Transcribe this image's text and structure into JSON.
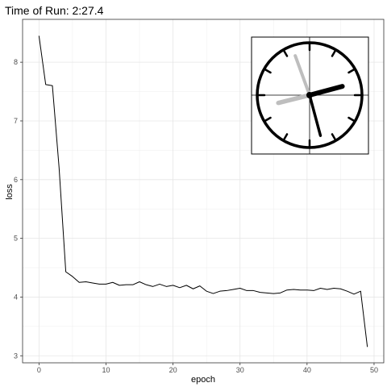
{
  "chart_data": {
    "type": "line",
    "title": "Time of Run: 2:27.4",
    "xlabel": "epoch",
    "ylabel": "loss",
    "xlim": [
      -2.45,
      51.45
    ],
    "ylim": [
      2.88,
      8.73
    ],
    "x_ticks": [
      0,
      10,
      20,
      30,
      40,
      50
    ],
    "y_ticks": [
      3,
      4,
      5,
      6,
      7,
      8
    ],
    "grid": true,
    "legend": "none",
    "series": [
      {
        "x": [
          0,
          1,
          2,
          3,
          4,
          5,
          6,
          7,
          8,
          9,
          10,
          11,
          12,
          13,
          14,
          15,
          16,
          17,
          18,
          19,
          20,
          21,
          22,
          23,
          24,
          25,
          26,
          27,
          28,
          29,
          30,
          31,
          32,
          33,
          34,
          35,
          36,
          37,
          38,
          39,
          40,
          41,
          42,
          43,
          44,
          45,
          46,
          47,
          48,
          49
        ],
        "values": [
          8.45,
          7.62,
          7.6,
          6.2,
          4.43,
          4.35,
          4.25,
          4.26,
          4.24,
          4.22,
          4.22,
          4.25,
          4.2,
          4.21,
          4.21,
          4.26,
          4.21,
          4.18,
          4.22,
          4.18,
          4.2,
          4.16,
          4.2,
          4.14,
          4.19,
          4.1,
          4.06,
          4.1,
          4.11,
          4.13,
          4.15,
          4.11,
          4.11,
          4.08,
          4.07,
          4.06,
          4.07,
          4.12,
          4.13,
          4.12,
          4.12,
          4.11,
          4.15,
          4.13,
          4.15,
          4.14,
          4.1,
          4.05,
          4.1,
          3.15
        ],
        "color": "#000000"
      }
    ],
    "inset_clock": {
      "hour_hand_color": "#000000",
      "minute_hand_color": "#000000",
      "second_hand_color": "#000000",
      "elapsed_hand_color": "#bebebe"
    }
  }
}
